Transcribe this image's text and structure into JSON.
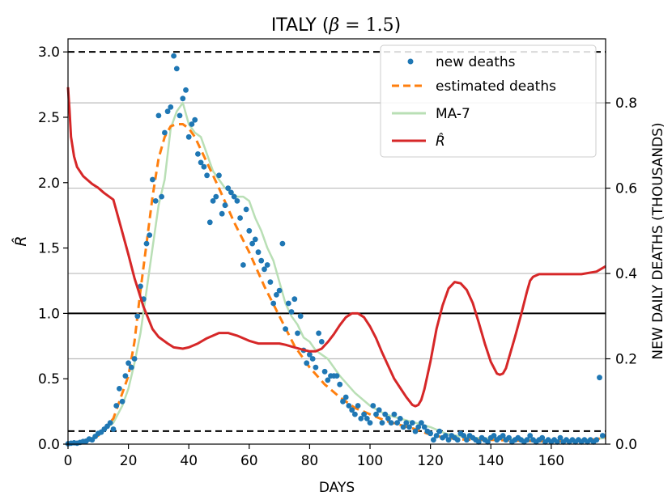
{
  "chart_data": {
    "type": "line",
    "title_prefix": "ITALY (",
    "title_beta": "β",
    "title_eq": " = 1.5",
    "title_suffix": ")",
    "xlabel": "DAYS",
    "ylabel_left": "R̂",
    "ylabel_right": "NEW DAILY DEATHS (THOUSANDS)",
    "xlim": [
      0,
      178
    ],
    "ylim_left": [
      0,
      3.1
    ],
    "ylim_right": [
      0,
      0.95
    ],
    "x_ticks": [
      0,
      20,
      40,
      60,
      80,
      100,
      120,
      140,
      160
    ],
    "x_tick_labels": [
      "0",
      "20",
      "40",
      "60",
      "80",
      "100",
      "120",
      "140",
      "160"
    ],
    "y_left_ticks": [
      0,
      0.5,
      1.0,
      1.5,
      2.0,
      2.5,
      3.0
    ],
    "y_left_tick_labels": [
      "0.0",
      "0.5",
      "1.0",
      "1.5",
      "2.0",
      "2.5",
      "3.0"
    ],
    "y_right_ticks": [
      0,
      0.2,
      0.4,
      0.6,
      0.8
    ],
    "y_right_tick_labels": [
      "0.0",
      "0.2",
      "0.4",
      "0.6",
      "0.8"
    ],
    "reference_lines_left": {
      "dashed": [
        3.0,
        0.1
      ],
      "solid": [
        1.0
      ]
    },
    "legend_position": "top-right",
    "legend": [
      "new deaths",
      "estimated deaths",
      "MA-7",
      "R̂"
    ],
    "colors": {
      "new_deaths": "#1f77b4",
      "estimated": "#ff7f0e",
      "ma7": "#b9dfb5",
      "r_hat": "#d62728",
      "grid": "#bbbbbb"
    },
    "series": [
      {
        "name": "new deaths",
        "axis": "right",
        "x": [
          0,
          1,
          2,
          3,
          4,
          5,
          6,
          7,
          8,
          9,
          10,
          11,
          12,
          13,
          14,
          15,
          16,
          17,
          18,
          19,
          20,
          21,
          22,
          23,
          24,
          25,
          26,
          27,
          28,
          29,
          30,
          31,
          32,
          33,
          34,
          35,
          36,
          37,
          38,
          39,
          40,
          41,
          42,
          43,
          44,
          45,
          46,
          47,
          48,
          49,
          50,
          51,
          52,
          53,
          54,
          55,
          56,
          57,
          58,
          59,
          60,
          61,
          62,
          63,
          64,
          65,
          66,
          67,
          68,
          69,
          70,
          71,
          72,
          73,
          74,
          75,
          76,
          77,
          78,
          79,
          80,
          81,
          82,
          83,
          84,
          85,
          86,
          87,
          88,
          89,
          90,
          91,
          92,
          93,
          94,
          95,
          96,
          97,
          98,
          99,
          100,
          101,
          102,
          103,
          104,
          105,
          106,
          107,
          108,
          109,
          110,
          111,
          112,
          113,
          114,
          115,
          116,
          117,
          118,
          119,
          120,
          121,
          122,
          123,
          124,
          125,
          126,
          127,
          128,
          129,
          130,
          131,
          132,
          133,
          134,
          135,
          136,
          137,
          138,
          139,
          140,
          141,
          142,
          143,
          144,
          145,
          146,
          147,
          148,
          149,
          150,
          151,
          152,
          153,
          154,
          155,
          156,
          157,
          158,
          159,
          160,
          161,
          162,
          163,
          164,
          165,
          166,
          167,
          168,
          169,
          170,
          171,
          172,
          173,
          174,
          175,
          176,
          177
        ],
        "values": [
          0.001,
          0.002,
          0.003,
          0.002,
          0.004,
          0.006,
          0.007,
          0.012,
          0.01,
          0.018,
          0.025,
          0.028,
          0.035,
          0.042,
          0.05,
          0.035,
          0.09,
          0.13,
          0.1,
          0.16,
          0.19,
          0.18,
          0.2,
          0.3,
          0.37,
          0.34,
          0.47,
          0.49,
          0.62,
          0.57,
          0.77,
          0.58,
          0.73,
          0.78,
          0.79,
          0.91,
          0.88,
          0.77,
          0.81,
          0.83,
          0.72,
          0.75,
          0.76,
          0.68,
          0.66,
          0.65,
          0.63,
          0.52,
          0.57,
          0.58,
          0.63,
          0.54,
          0.56,
          0.6,
          0.59,
          0.58,
          0.57,
          0.53,
          0.42,
          0.55,
          0.5,
          0.47,
          0.48,
          0.45,
          0.43,
          0.41,
          0.42,
          0.38,
          0.33,
          0.35,
          0.36,
          0.47,
          0.27,
          0.33,
          0.31,
          0.34,
          0.26,
          0.3,
          0.22,
          0.19,
          0.21,
          0.2,
          0.18,
          0.26,
          0.24,
          0.17,
          0.15,
          0.16,
          0.16,
          0.16,
          0.14,
          0.1,
          0.11,
          0.09,
          0.08,
          0.07,
          0.09,
          0.06,
          0.07,
          0.06,
          0.05,
          0.09,
          0.07,
          0.08,
          0.05,
          0.07,
          0.06,
          0.05,
          0.07,
          0.05,
          0.06,
          0.04,
          0.05,
          0.04,
          0.05,
          0.03,
          0.04,
          0.05,
          0.04,
          0.03,
          0.025,
          0.01,
          0.02,
          0.03,
          0.015,
          0.02,
          0.01,
          0.02,
          0.015,
          0.01,
          0.025,
          0.02,
          0.01,
          0.02,
          0.015,
          0.01,
          0.005,
          0.015,
          0.01,
          0.005,
          0.015,
          0.02,
          0.01,
          0.015,
          0.02,
          0.01,
          0.015,
          0.005,
          0.01,
          0.015,
          0.01,
          0.005,
          0.01,
          0.02,
          0.01,
          0.005,
          0.01,
          0.015,
          0.005,
          0.01,
          0.005,
          0.01,
          0.005,
          0.015,
          0.005,
          0.01,
          0.005,
          0.01,
          0.005,
          0.01,
          0.005,
          0.01,
          0.005,
          0.01,
          0.005,
          0.01,
          0.156,
          0.02
        ]
      },
      {
        "name": "estimated deaths",
        "axis": "right",
        "x": [
          0,
          5,
          10,
          15,
          20,
          22,
          24,
          26,
          28,
          30,
          32,
          34,
          36,
          38,
          40,
          42,
          45,
          50,
          55,
          60,
          65,
          70,
          75,
          80,
          85,
          90,
          95,
          100,
          105,
          110,
          115,
          120,
          125,
          130,
          135,
          140,
          145,
          150,
          155,
          160,
          165,
          170,
          175,
          178
        ],
        "values": [
          0,
          0.005,
          0.02,
          0.06,
          0.16,
          0.24,
          0.36,
          0.47,
          0.58,
          0.67,
          0.72,
          0.745,
          0.75,
          0.75,
          0.74,
          0.72,
          0.675,
          0.6,
          0.52,
          0.45,
          0.37,
          0.3,
          0.23,
          0.18,
          0.14,
          0.11,
          0.085,
          0.07,
          0.055,
          0.045,
          0.035,
          0.022,
          0.015,
          0.011,
          0.01,
          0.01,
          0.009,
          0.008,
          0.007,
          0.006,
          0.006,
          0.007,
          0.012,
          0.015
        ]
      },
      {
        "name": "MA-7",
        "axis": "right",
        "x": [
          0,
          5,
          10,
          15,
          18,
          20,
          22,
          24,
          26,
          28,
          30,
          32,
          34,
          36,
          38,
          40,
          42,
          44,
          46,
          48,
          50,
          52,
          54,
          56,
          58,
          60,
          62,
          64,
          66,
          68,
          70,
          72,
          74,
          76,
          78,
          80,
          82,
          84,
          86,
          88,
          90,
          95,
          100,
          105,
          110,
          115,
          120,
          125,
          130,
          135,
          140,
          145,
          150,
          155,
          160,
          165,
          170,
          175,
          178
        ],
        "values": [
          0.002,
          0.006,
          0.02,
          0.05,
          0.09,
          0.13,
          0.19,
          0.26,
          0.36,
          0.46,
          0.56,
          0.62,
          0.74,
          0.78,
          0.8,
          0.75,
          0.73,
          0.72,
          0.68,
          0.64,
          0.62,
          0.6,
          0.59,
          0.58,
          0.58,
          0.57,
          0.53,
          0.5,
          0.46,
          0.43,
          0.38,
          0.33,
          0.3,
          0.28,
          0.25,
          0.24,
          0.22,
          0.21,
          0.2,
          0.18,
          0.16,
          0.12,
          0.09,
          0.07,
          0.06,
          0.05,
          0.04,
          0.025,
          0.018,
          0.015,
          0.013,
          0.012,
          0.011,
          0.01,
          0.009,
          0.009,
          0.01,
          0.012,
          0.015
        ]
      },
      {
        "name": "R̂",
        "axis": "left",
        "x": [
          0,
          0.5,
          1,
          2,
          3,
          5,
          8,
          10,
          12,
          15,
          18,
          20,
          22,
          25,
          28,
          30,
          33,
          35,
          38,
          40,
          43,
          46,
          50,
          53,
          56,
          60,
          63,
          66,
          70,
          72,
          75,
          78,
          80,
          82,
          84,
          86,
          88,
          90,
          92,
          94,
          96,
          98,
          100,
          102,
          104,
          106,
          108,
          110,
          112,
          114,
          115,
          116,
          117,
          118,
          120,
          122,
          124,
          126,
          128,
          130,
          132,
          134,
          136,
          138,
          140,
          142,
          143,
          144,
          145,
          146,
          148,
          150,
          152,
          153,
          154,
          156,
          160,
          165,
          170,
          175,
          178
        ],
        "values": [
          2.73,
          2.55,
          2.35,
          2.2,
          2.12,
          2.05,
          1.99,
          1.96,
          1.92,
          1.87,
          1.62,
          1.45,
          1.27,
          1.05,
          0.88,
          0.82,
          0.77,
          0.74,
          0.73,
          0.74,
          0.77,
          0.81,
          0.85,
          0.85,
          0.83,
          0.79,
          0.77,
          0.77,
          0.77,
          0.76,
          0.74,
          0.72,
          0.71,
          0.71,
          0.73,
          0.78,
          0.84,
          0.91,
          0.97,
          1.0,
          1.0,
          0.97,
          0.9,
          0.81,
          0.7,
          0.6,
          0.5,
          0.43,
          0.36,
          0.3,
          0.29,
          0.3,
          0.34,
          0.42,
          0.63,
          0.88,
          1.06,
          1.19,
          1.24,
          1.23,
          1.18,
          1.08,
          0.93,
          0.77,
          0.63,
          0.54,
          0.53,
          0.54,
          0.58,
          0.66,
          0.82,
          0.99,
          1.17,
          1.25,
          1.28,
          1.3,
          1.3,
          1.3,
          1.3,
          1.32,
          1.36
        ]
      }
    ]
  }
}
